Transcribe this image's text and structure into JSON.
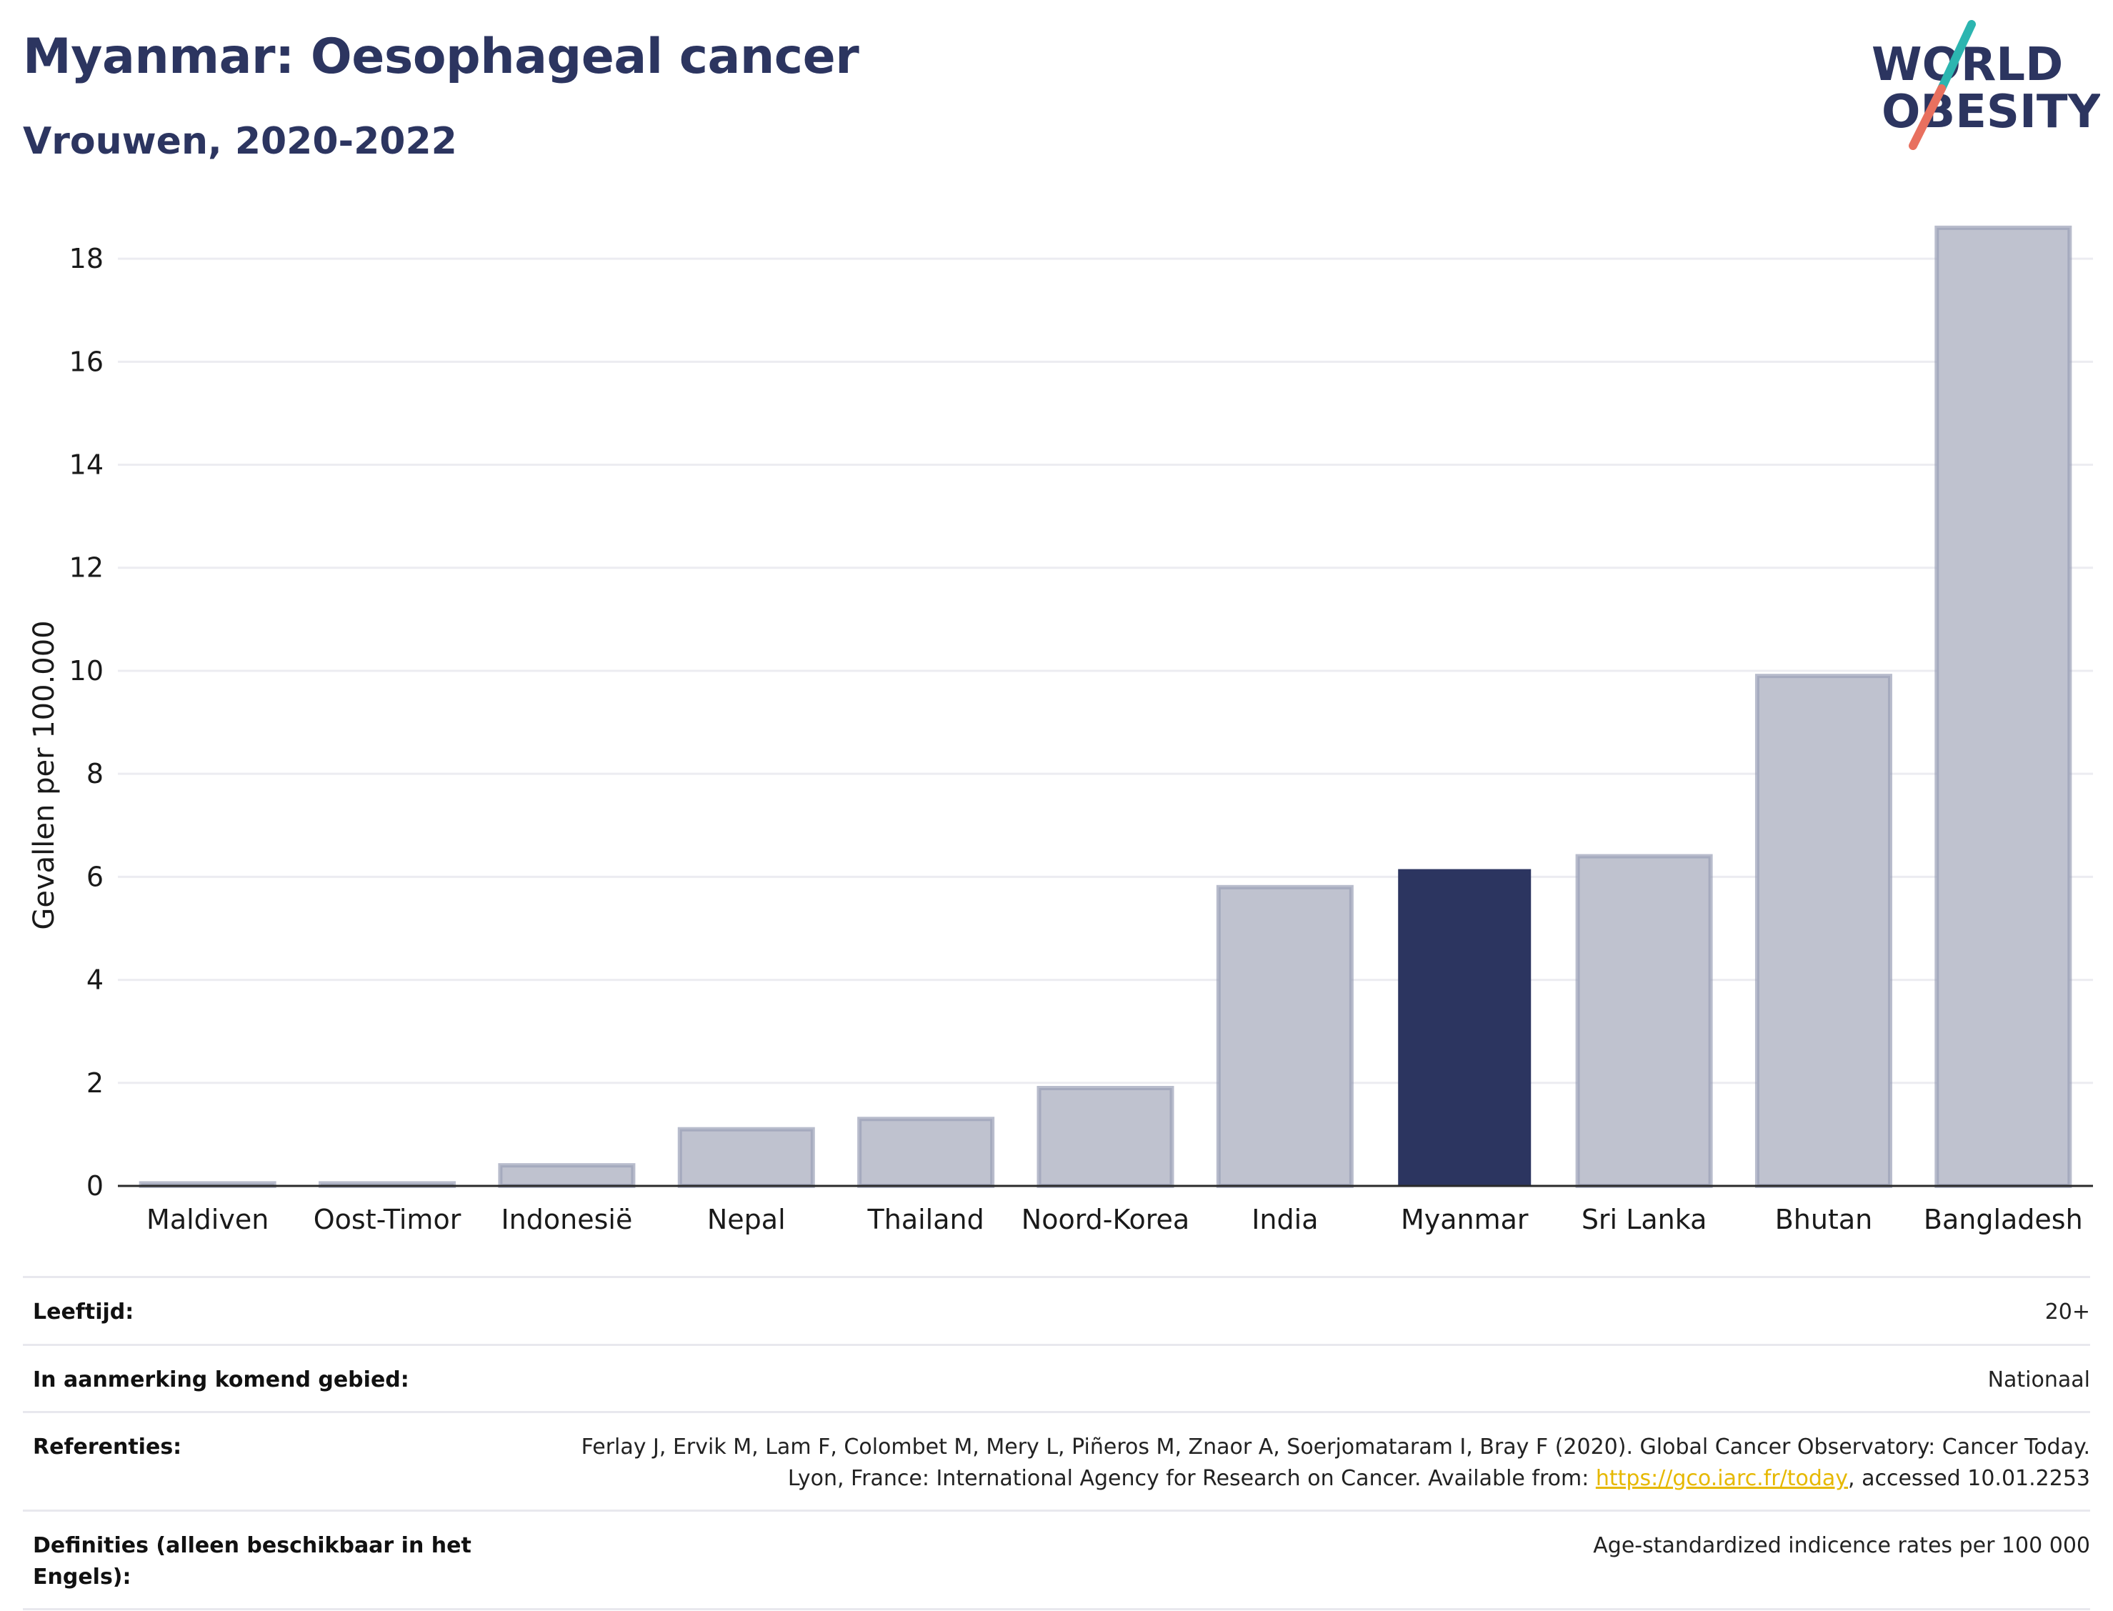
{
  "header": {
    "title": "Myanmar: Oesophageal cancer",
    "subtitle": "Vrouwen, 2020-2022"
  },
  "logo": {
    "line1": "WORLD",
    "line2": "OBESITY",
    "colors": {
      "text": "#2c3560",
      "slash_top": "#2cb5b0",
      "slash_bottom": "#e8705f"
    }
  },
  "chart_data": {
    "type": "bar",
    "ylabel": "Gevallen per 100.000",
    "xlabel": "",
    "ylim": [
      0,
      19
    ],
    "yticks": [
      0,
      2,
      4,
      6,
      8,
      10,
      12,
      14,
      16,
      18
    ],
    "grid": true,
    "categories": [
      "Maldiven",
      "Oost-Timor",
      "Indonesië",
      "Nepal",
      "Thailand",
      "Noord-Korea",
      "India",
      "Myanmar",
      "Sri Lanka",
      "Bhutan",
      "Bangladesh"
    ],
    "values": [
      0.05,
      0.05,
      0.4,
      1.1,
      1.3,
      1.9,
      5.8,
      6.15,
      6.4,
      9.9,
      18.6
    ],
    "highlight": "Myanmar",
    "colors": {
      "bar": "#bfc2cf",
      "bar_edge": "#9a9fb6",
      "highlight": "#2c3560",
      "grid": "#ececf1",
      "axis": "#2a2a2a"
    }
  },
  "meta": [
    {
      "label": "Leeftijd:",
      "value": "20+"
    },
    {
      "label": "In aanmerking komend gebied:",
      "value": "Nationaal"
    },
    {
      "label": "Referenties:",
      "value_pre": "Ferlay J, Ervik M, Lam F, Colombet M, Mery L, Piñeros M, Znaor A, Soerjomataram I, Bray F (2020). Global Cancer Observatory: Cancer Today. Lyon, France: International Agency for Research on Cancer. Available from: ",
      "link": "https://gco.iarc.fr/today",
      "value_post": ", accessed 10.01.2253"
    },
    {
      "label": "Definities (alleen beschikbaar in het Engels):",
      "value": "Age-standardized indicence rates per 100 000"
    }
  ]
}
